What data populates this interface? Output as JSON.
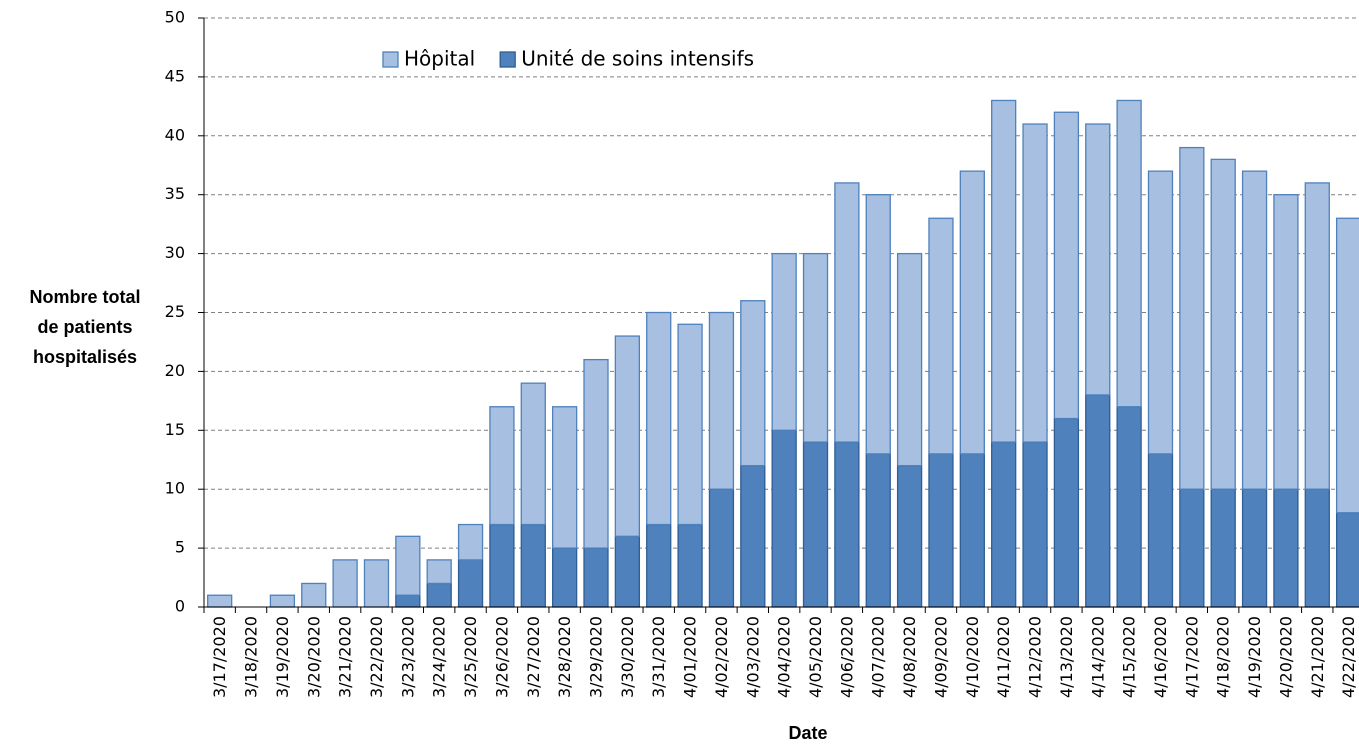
{
  "chart_data": {
    "type": "stacked-bar",
    "ylabel": [
      "Nombre total",
      "de patients",
      "hospitalisés"
    ],
    "xlabel": "Date",
    "categories": [
      "3/17/2020",
      "3/18/2020",
      "3/19/2020",
      "3/20/2020",
      "3/21/2020",
      "3/22/2020",
      "3/23/2020",
      "3/24/2020",
      "3/25/2020",
      "3/26/2020",
      "3/27/2020",
      "3/28/2020",
      "3/29/2020",
      "3/30/2020",
      "3/31/2020",
      "4/01/2020",
      "4/02/2020",
      "4/03/2020",
      "4/04/2020",
      "4/05/2020",
      "4/06/2020",
      "4/07/2020",
      "4/08/2020",
      "4/09/2020",
      "4/10/2020",
      "4/11/2020",
      "4/12/2020",
      "4/13/2020",
      "4/14/2020",
      "4/15/2020",
      "4/16/2020",
      "4/17/2020",
      "4/18/2020",
      "4/19/2020",
      "4/20/2020",
      "4/21/2020",
      "4/22/2020"
    ],
    "series": [
      {
        "name": "Hôpital",
        "color": "#a7bfe0",
        "stroke": "#4f81bd",
        "values": [
          1,
          0,
          1,
          2,
          4,
          4,
          5,
          2,
          3,
          10,
          12,
          12,
          16,
          17,
          18,
          17,
          15,
          14,
          15,
          16,
          22,
          22,
          18,
          20,
          24,
          29,
          27,
          26,
          23,
          26,
          24,
          29,
          28,
          27,
          25,
          26,
          25
        ]
      },
      {
        "name": "Unité de soins intensifs",
        "color": "#4f81bd",
        "stroke": "#2f5d94",
        "values": [
          0,
          0,
          0,
          0,
          0,
          0,
          1,
          2,
          4,
          7,
          7,
          5,
          5,
          6,
          7,
          7,
          10,
          12,
          15,
          14,
          14,
          13,
          12,
          13,
          13,
          14,
          14,
          16,
          18,
          17,
          13,
          10,
          10,
          10,
          10,
          10,
          8
        ]
      }
    ],
    "ylim": [
      0,
      50
    ],
    "yticks": [
      0,
      5,
      10,
      15,
      20,
      25,
      30,
      35,
      40,
      45,
      50
    ],
    "grid": true
  }
}
